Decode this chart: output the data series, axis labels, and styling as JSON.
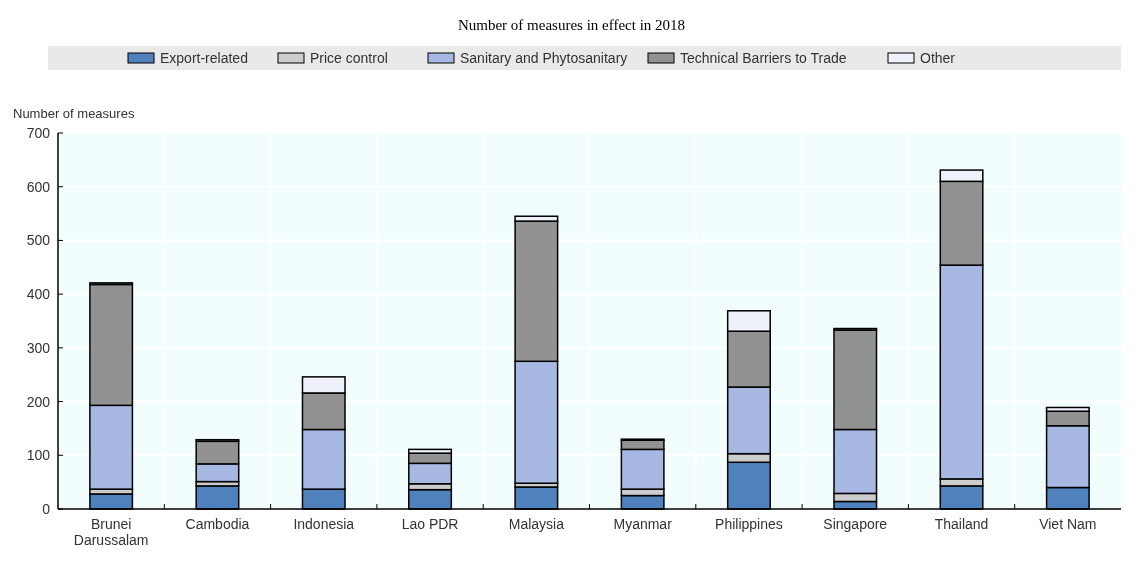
{
  "chart_data": {
    "type": "bar",
    "title": "Number of measures in effect in 2018",
    "ylabel": "Number of measures",
    "categories": [
      "Brunei Darussalam",
      "Cambodia",
      "Indonesia",
      "Lao PDR",
      "Malaysia",
      "Myanmar",
      "Philippines",
      "Singapore",
      "Thailand",
      "Viet Nam"
    ],
    "stacked": true,
    "ylim": [
      0,
      700
    ],
    "yticks": [
      0,
      100,
      200,
      300,
      400,
      500,
      600,
      700
    ],
    "grid": true,
    "legend": "top",
    "series": [
      {
        "name": "Export-related",
        "color": "#4f81bd",
        "values": [
          28,
          43,
          37,
          36,
          41,
          25,
          87,
          14,
          43,
          40
        ]
      },
      {
        "name": "Price control",
        "color": "#cccccc",
        "values": [
          9,
          8,
          0,
          11,
          7,
          12,
          16,
          15,
          13,
          0
        ]
      },
      {
        "name": "Sanitary and Phytosanitary",
        "color": "#a7b9e3",
        "values": [
          156,
          33,
          111,
          38,
          227,
          74,
          124,
          119,
          398,
          115
        ]
      },
      {
        "name": "Technical Barriers to Trade",
        "color": "#929292",
        "values": [
          225,
          42,
          68,
          19,
          261,
          17,
          104,
          185,
          156,
          27
        ]
      },
      {
        "name": "Other",
        "color": "#eef0fa",
        "values": [
          3,
          3,
          30,
          7,
          9,
          2,
          38,
          3,
          21,
          7
        ]
      }
    ]
  }
}
